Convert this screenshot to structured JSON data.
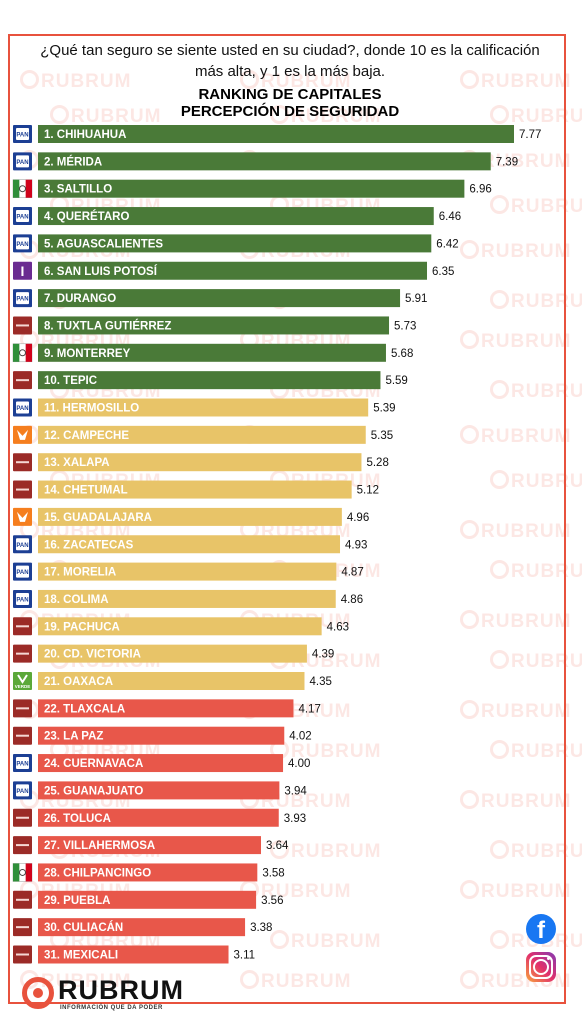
{
  "header": {
    "question": "¿Qué tan seguro se siente usted en su ciudad?, donde 10 es la calificación más alta, y  1 es la más baja.",
    "title_line1": "RANKING DE CAPITALES",
    "title_line2": "PERCEPCIÓN DE SEGURIDAD"
  },
  "watermark": "RUBRUM",
  "colors": {
    "top": "#4a7a38",
    "middle": "#e8c468",
    "bottom": "#e8574a",
    "frame": "#e8523d",
    "pan": "#1c3f94",
    "pri": "#d0021b",
    "morena": "#9b2b27",
    "mc": "#f57e1e",
    "pvem": "#5ba839",
    "ind": "#6a2c91"
  },
  "chart_data": {
    "type": "bar",
    "orientation": "horizontal",
    "title": "RANKING DE CAPITALES PERCEPCIÓN DE SEGURIDAD",
    "xlim": [
      0,
      7.77
    ],
    "categories": [
      "1. CHIHUAHUA",
      "2. MÉRIDA",
      "3. SALTILLO",
      "4. QUERÉTARO",
      "5. AGUASCALIENTES",
      "6. SAN LUIS POTOSÍ",
      "7. DURANGO",
      "8. TUXTLA GUTIÉRREZ",
      "9. MONTERREY",
      "10. TEPIC",
      "11. HERMOSILLO",
      "12. CAMPECHE",
      "13. XALAPA",
      "14. CHETUMAL",
      "15. GUADALAJARA",
      "16. ZACATECAS",
      "17. MORELIA",
      "18. COLIMA",
      "19. PACHUCA",
      "20. CD. VICTORIA",
      "21. OAXACA",
      "22. TLAXCALA",
      "23. LA PAZ",
      "24. CUERNAVACA",
      "25. GUANAJUATO",
      "26. TOLUCA",
      "27. VILLAHERMOSA",
      "28. CHILPANCINGO",
      "29. PUEBLA",
      "30. CULIACÁN",
      "31. MEXICALI"
    ],
    "values": [
      7.77,
      7.39,
      6.96,
      6.46,
      6.42,
      6.35,
      5.91,
      5.73,
      5.68,
      5.59,
      5.39,
      5.35,
      5.28,
      5.12,
      4.96,
      4.93,
      4.87,
      4.86,
      4.63,
      4.39,
      4.35,
      4.17,
      4.02,
      4.0,
      3.94,
      3.93,
      3.64,
      3.58,
      3.56,
      3.38,
      3.11
    ],
    "value_labels": [
      "7.77",
      "7.39",
      "6.96",
      "6.46",
      "6.42",
      "6.35",
      "5.91",
      "5.73",
      "5.68",
      "5.59",
      "5.39",
      "5.35",
      "5.28",
      "5.12",
      "4.96",
      "4.93",
      "4.87",
      "4.86",
      "4.63",
      "4.39",
      "4.35",
      "4.17",
      "4.02",
      "4.00",
      "3.94",
      "3.93",
      "3.64",
      "3.58",
      "3.56",
      "3.38",
      "3.11"
    ],
    "tiers": [
      "top",
      "top",
      "top",
      "top",
      "top",
      "top",
      "top",
      "top",
      "top",
      "top",
      "middle",
      "middle",
      "middle",
      "middle",
      "middle",
      "middle",
      "middle",
      "middle",
      "middle",
      "middle",
      "middle",
      "bottom",
      "bottom",
      "bottom",
      "bottom",
      "bottom",
      "bottom",
      "bottom",
      "bottom",
      "bottom",
      "bottom"
    ],
    "party_icons": [
      "pan",
      "pan",
      "pri",
      "pan",
      "pan",
      "ind",
      "pan",
      "morena",
      "pri",
      "morena",
      "pan",
      "mc",
      "morena",
      "morena",
      "mc",
      "pan",
      "pan",
      "pan",
      "morena",
      "morena",
      "pvem",
      "morena",
      "morena",
      "pan",
      "pan",
      "morena",
      "morena",
      "pri",
      "morena",
      "morena",
      "morena"
    ],
    "icon_labels": {
      "pan": "PAN",
      "pvem": "VERDE",
      "ind": "I"
    }
  },
  "footer": {
    "brand": "RUBRUM",
    "tagline": "INFORMACIÓN QUE DA PODER"
  }
}
